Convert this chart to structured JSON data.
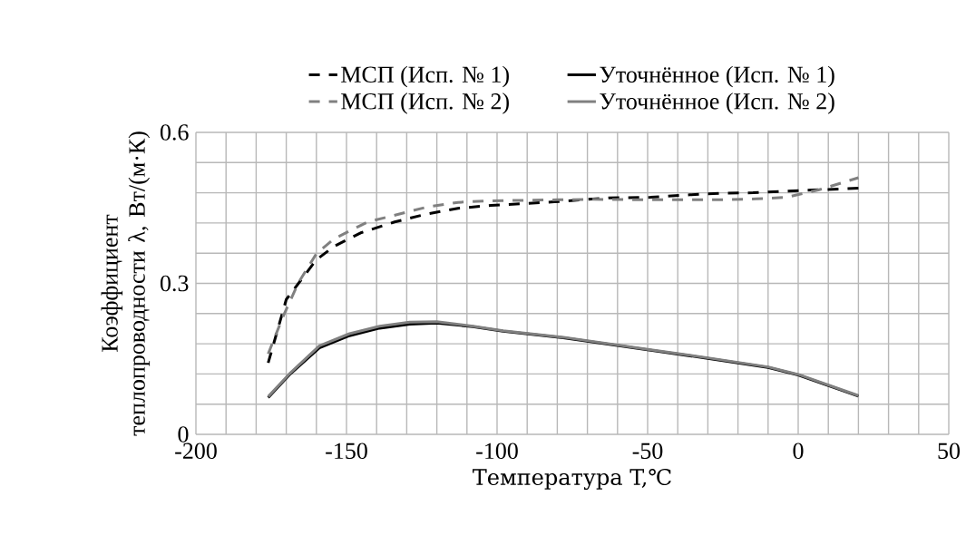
{
  "chart_data": {
    "type": "line",
    "xlabel": "Температура T,℃",
    "ylabel": "Коэффициент теплопроводности λ, Вт/(м·К)",
    "xlim": [
      -200,
      50
    ],
    "xticks": [
      -200,
      -150,
      -100,
      -50,
      0,
      50
    ],
    "ylim": [
      0,
      0.6
    ],
    "yticks": [
      0,
      0.3,
      0.6
    ],
    "grid": true,
    "legend": "top",
    "marker": "none",
    "series": [
      {
        "name": "МСП (Исп. № 1)",
        "color": "#000000",
        "line_style": "dashed",
        "x": [
          -176,
          -170,
          -160,
          -154,
          -145,
          -134,
          -124,
          -113,
          -102,
          -81,
          -63,
          -49,
          -36,
          -26,
          -15,
          -4,
          7,
          20
        ],
        "values": [
          0.142,
          0.268,
          0.347,
          0.374,
          0.401,
          0.422,
          0.437,
          0.449,
          0.455,
          0.462,
          0.47,
          0.471,
          0.476,
          0.479,
          0.48,
          0.483,
          0.486,
          0.489
        ]
      },
      {
        "name": "Уточнённое (Исп. № 1)",
        "color": "#000000",
        "line_style": "solid",
        "x": [
          -176,
          -169,
          -159,
          -149,
          -139,
          -129,
          -120,
          -108,
          -98,
          -78,
          -50,
          -30,
          -10,
          0,
          20
        ],
        "values": [
          0.073,
          0.118,
          0.172,
          0.196,
          0.211,
          0.219,
          0.221,
          0.214,
          0.205,
          0.192,
          0.168,
          0.151,
          0.133,
          0.118,
          0.076
        ]
      },
      {
        "name": "МСП (Исп. № 2)",
        "color": "#808080",
        "line_style": "dashed",
        "x": [
          -176,
          -171,
          -166,
          -160,
          -154,
          -143,
          -133,
          -123,
          -113,
          -103,
          -80,
          -68,
          -47,
          -36,
          -25,
          -14,
          -4,
          7,
          20
        ],
        "values": [
          0.16,
          0.235,
          0.301,
          0.359,
          0.389,
          0.422,
          0.437,
          0.452,
          0.461,
          0.464,
          0.466,
          0.467,
          0.466,
          0.466,
          0.466,
          0.468,
          0.471,
          0.486,
          0.51
        ]
      },
      {
        "name": "Уточнённое (Исп. № 2)",
        "color": "#808080",
        "line_style": "solid",
        "x": [
          -176,
          -169,
          -159,
          -149,
          -139,
          -129,
          -120,
          -108,
          -98,
          -78,
          -50,
          -30,
          -10,
          0,
          20
        ],
        "values": [
          0.075,
          0.12,
          0.176,
          0.2,
          0.215,
          0.223,
          0.224,
          0.215,
          0.206,
          0.193,
          0.169,
          0.152,
          0.134,
          0.119,
          0.077
        ]
      }
    ]
  }
}
